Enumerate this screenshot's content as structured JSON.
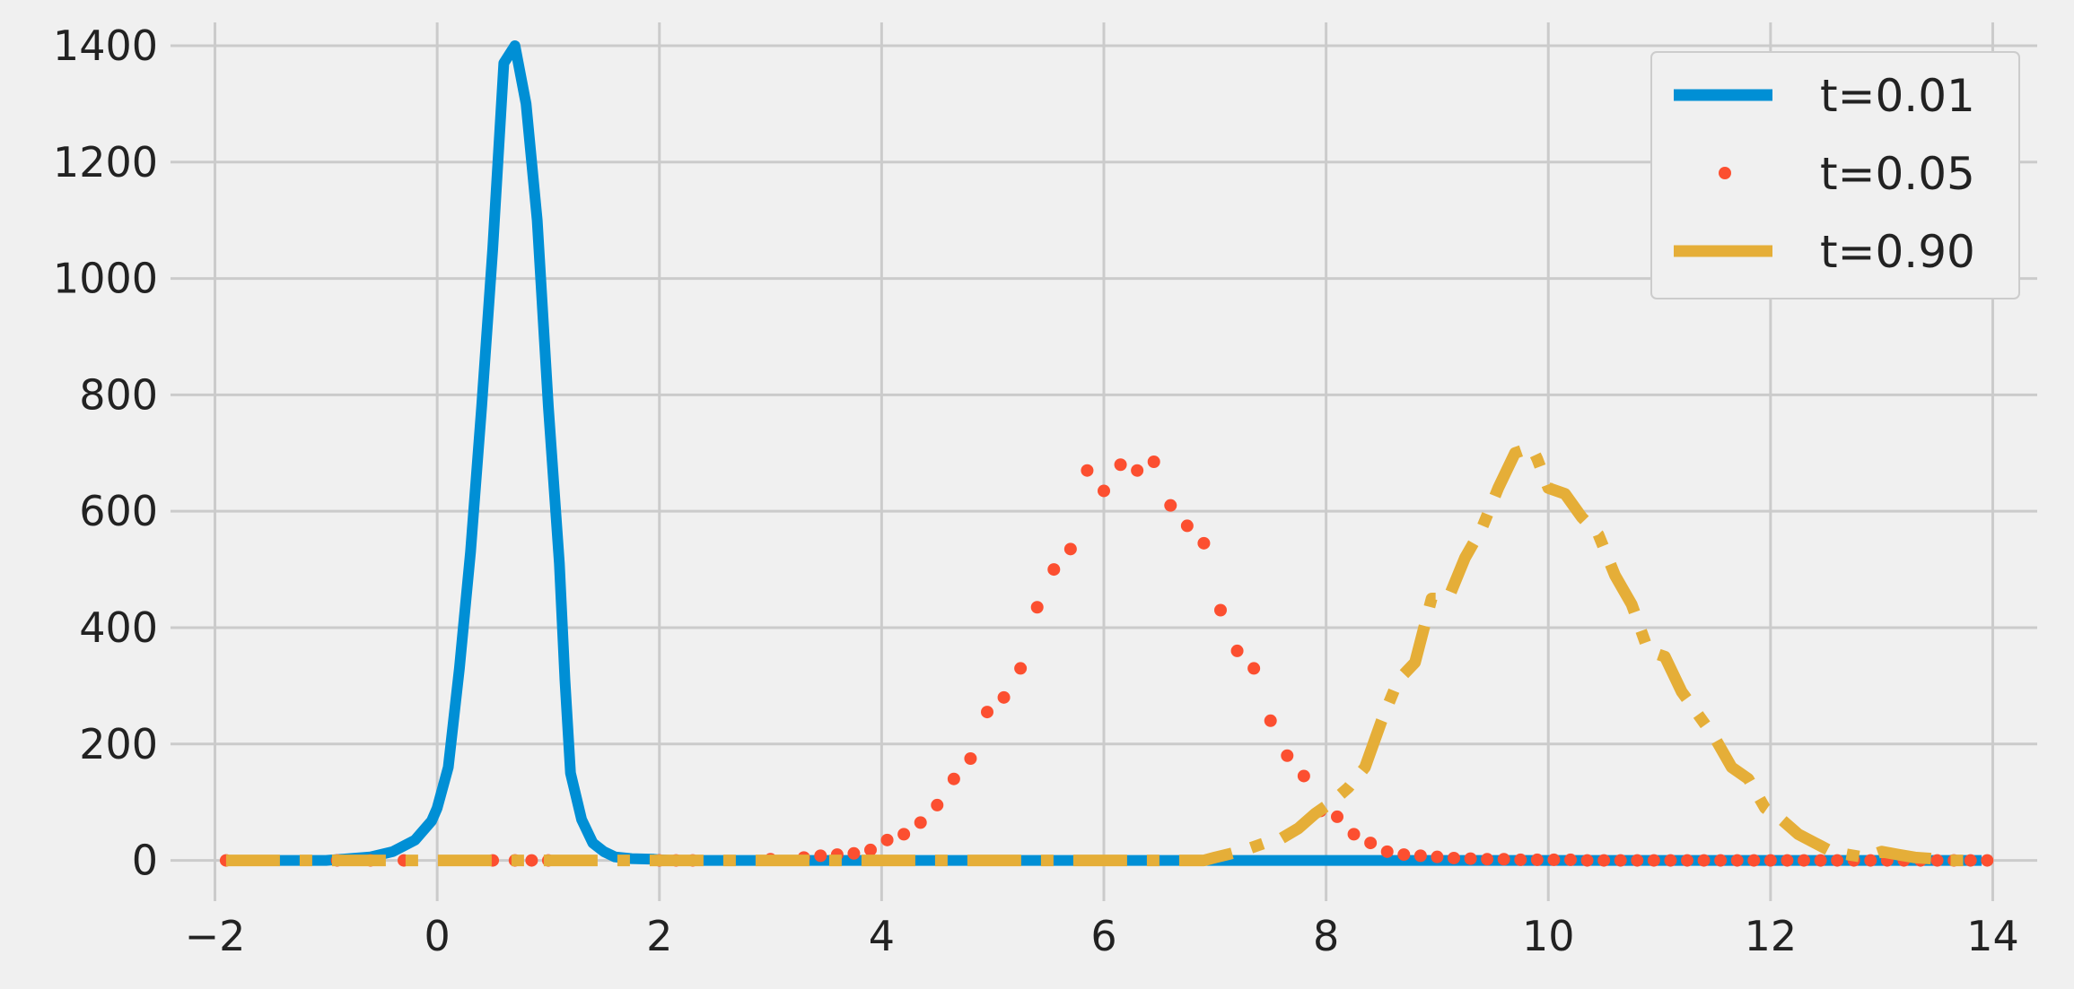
{
  "chart_data": {
    "type": "line",
    "title": "",
    "xlabel": "",
    "ylabel": "",
    "xlim": [
      -2.4,
      14.4
    ],
    "ylim": [
      -70,
      1440
    ],
    "xticks": [
      -2,
      0,
      2,
      4,
      6,
      8,
      10,
      12,
      14
    ],
    "xtick_labels": [
      "−2",
      "0",
      "2",
      "4",
      "6",
      "8",
      "10",
      "12",
      "14"
    ],
    "yticks": [
      0,
      200,
      400,
      600,
      800,
      1000,
      1200,
      1400
    ],
    "ytick_labels": [
      "0",
      "200",
      "400",
      "600",
      "800",
      "1000",
      "1200",
      "1400"
    ],
    "grid": true,
    "legend_position": "top-right",
    "series": [
      {
        "name": "t=0.01",
        "style": "solid",
        "color": "#008fd5",
        "x": [
          -1.9,
          -1.0,
          -0.6,
          -0.4,
          -0.2,
          -0.05,
          0.0,
          0.1,
          0.2,
          0.3,
          0.4,
          0.5,
          0.6,
          0.7,
          0.8,
          0.9,
          1.0,
          1.1,
          1.15,
          1.2,
          1.3,
          1.4,
          1.5,
          1.6,
          1.75,
          1.95,
          2.0,
          2.1,
          2.2,
          2.35,
          2.45,
          2.6,
          2.8,
          3.0,
          3.5,
          4.0,
          6.0,
          8.0,
          10.0,
          12.0,
          13.9
        ],
        "y": [
          0,
          0,
          6,
          15,
          35,
          68,
          90,
          160,
          330,
          530,
          780,
          1050,
          1370,
          1400,
          1300,
          1100,
          780,
          510,
          310,
          150,
          70,
          30,
          15,
          6,
          3,
          2,
          1,
          0,
          0,
          0,
          0,
          0,
          0,
          0,
          0,
          0,
          0,
          0,
          0,
          0,
          0
        ]
      },
      {
        "name": "t=0.05",
        "style": "dotted",
        "color": "#fc4f30",
        "x": [
          -1.9,
          -0.9,
          -0.6,
          -0.3,
          0.5,
          0.7,
          0.85,
          1.0,
          2.0,
          2.15,
          2.3,
          3.0,
          3.3,
          3.45,
          3.6,
          3.75,
          3.9,
          4.05,
          4.2,
          4.35,
          4.5,
          4.65,
          4.8,
          4.95,
          5.1,
          5.25,
          5.4,
          5.55,
          5.7,
          5.85,
          6.0,
          6.15,
          6.3,
          6.45,
          6.6,
          6.75,
          6.9,
          7.05,
          7.2,
          7.35,
          7.5,
          7.65,
          7.8,
          7.95,
          8.1,
          8.25,
          8.4,
          8.55,
          8.7,
          8.85,
          9.0,
          9.15,
          9.3,
          9.45,
          9.6,
          9.75,
          9.9,
          10.05,
          10.2,
          10.35,
          10.5,
          10.65,
          10.8,
          10.95,
          11.1,
          11.25,
          11.4,
          11.55,
          11.7,
          11.85,
          12.0,
          12.15,
          12.3,
          12.45,
          12.6,
          12.75,
          12.9,
          13.05,
          13.2,
          13.35,
          13.5,
          13.65,
          13.8,
          13.95
        ],
        "y": [
          0,
          0,
          0,
          0,
          0,
          0,
          0,
          0,
          0,
          0,
          0,
          2,
          5,
          8,
          10,
          12,
          18,
          35,
          45,
          65,
          95,
          140,
          175,
          255,
          280,
          330,
          435,
          500,
          535,
          670,
          635,
          680,
          670,
          685,
          610,
          575,
          545,
          430,
          360,
          330,
          240,
          180,
          145,
          85,
          75,
          45,
          30,
          15,
          10,
          8,
          6,
          4,
          3,
          2,
          2,
          1,
          1,
          1,
          1,
          0,
          0,
          0,
          0,
          0,
          0,
          0,
          0,
          0,
          0,
          0,
          0,
          0,
          0,
          0,
          0,
          0,
          0,
          0,
          0,
          0,
          0,
          0,
          0,
          0
        ]
      },
      {
        "name": "t=0.90",
        "style": "dashdot",
        "color": "#e5ae38",
        "x": [
          -1.9,
          6.9,
          7.0,
          7.15,
          7.3,
          7.45,
          7.6,
          7.75,
          7.9,
          8.05,
          8.2,
          8.35,
          8.5,
          8.65,
          8.8,
          8.95,
          9.1,
          9.25,
          9.4,
          9.55,
          9.7,
          9.85,
          9.9,
          10.0,
          10.15,
          10.3,
          10.45,
          10.6,
          10.75,
          10.9,
          11.05,
          11.2,
          11.35,
          11.5,
          11.65,
          11.8,
          11.95,
          12.1,
          12.25,
          12.4,
          12.55,
          12.7,
          12.85,
          13.0,
          13.15,
          13.3,
          13.45,
          13.6,
          13.9
        ],
        "y": [
          0,
          0,
          5,
          12,
          20,
          30,
          38,
          55,
          80,
          100,
          125,
          160,
          240,
          310,
          340,
          450,
          450,
          520,
          570,
          640,
          700,
          710,
          690,
          640,
          630,
          590,
          560,
          490,
          440,
          360,
          350,
          290,
          250,
          210,
          160,
          140,
          90,
          70,
          45,
          30,
          15,
          10,
          5,
          15,
          10,
          5,
          3,
          0,
          0
        ]
      }
    ]
  },
  "colors": {
    "background": "#f0f0f0",
    "grid": "#cbcbcb",
    "text": "#222222",
    "legend_border": "#cccccc"
  }
}
